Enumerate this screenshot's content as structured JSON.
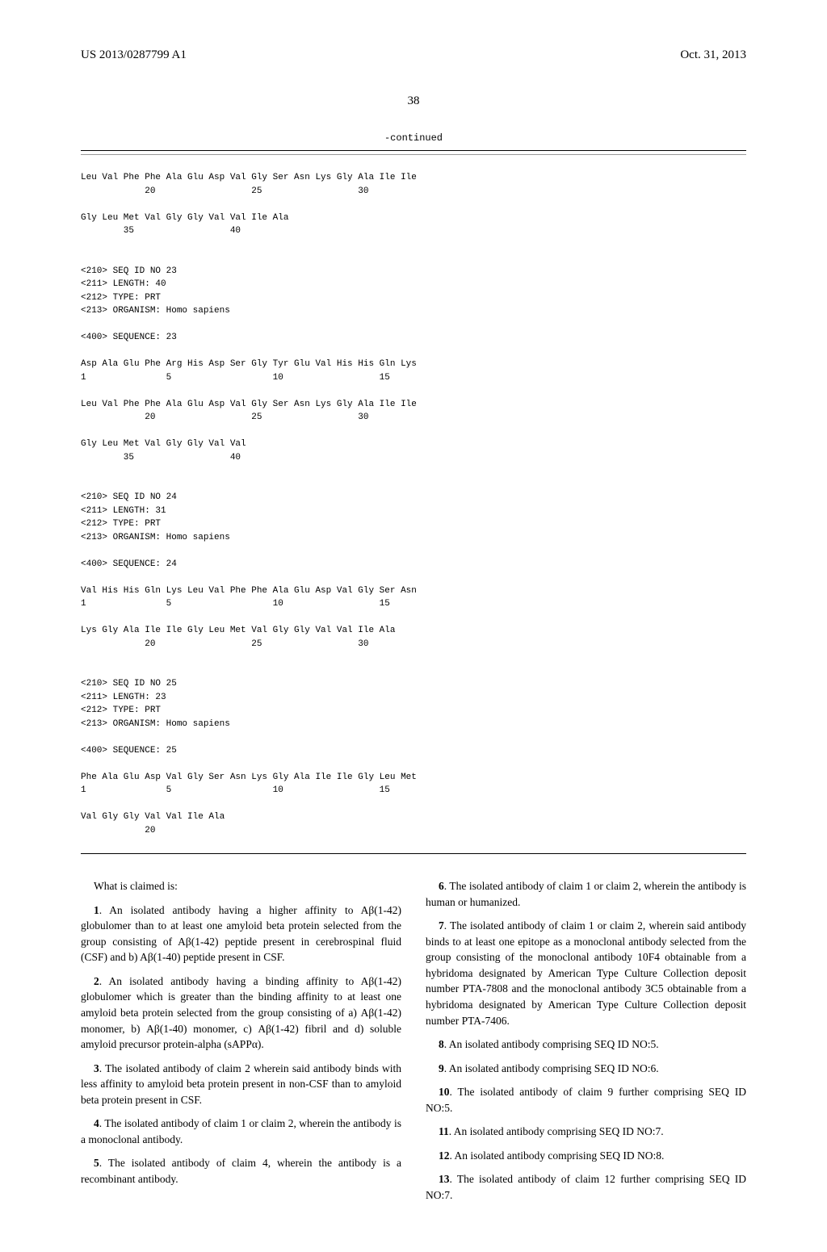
{
  "header": {
    "pub_number": "US 2013/0287799 A1",
    "pub_date": "Oct. 31, 2013"
  },
  "page_number": "38",
  "continued": "-continued",
  "seq_block": "Leu Val Phe Phe Ala Glu Asp Val Gly Ser Asn Lys Gly Ala Ile Ile\n            20                  25                  30\n\nGly Leu Met Val Gly Gly Val Val Ile Ala\n        35                  40\n\n\n<210> SEQ ID NO 23\n<211> LENGTH: 40\n<212> TYPE: PRT\n<213> ORGANISM: Homo sapiens\n\n<400> SEQUENCE: 23\n\nAsp Ala Glu Phe Arg His Asp Ser Gly Tyr Glu Val His His Gln Lys\n1               5                   10                  15\n\nLeu Val Phe Phe Ala Glu Asp Val Gly Ser Asn Lys Gly Ala Ile Ile\n            20                  25                  30\n\nGly Leu Met Val Gly Gly Val Val\n        35                  40\n\n\n<210> SEQ ID NO 24\n<211> LENGTH: 31\n<212> TYPE: PRT\n<213> ORGANISM: Homo sapiens\n\n<400> SEQUENCE: 24\n\nVal His His Gln Lys Leu Val Phe Phe Ala Glu Asp Val Gly Ser Asn\n1               5                   10                  15\n\nLys Gly Ala Ile Ile Gly Leu Met Val Gly Gly Val Val Ile Ala\n            20                  25                  30\n\n\n<210> SEQ ID NO 25\n<211> LENGTH: 23\n<212> TYPE: PRT\n<213> ORGANISM: Homo sapiens\n\n<400> SEQUENCE: 25\n\nPhe Ala Glu Asp Val Gly Ser Asn Lys Gly Ala Ile Ile Gly Leu Met\n1               5                   10                  15\n\nVal Gly Gly Val Val Ile Ala\n            20",
  "claims_intro": "What is claimed is:",
  "claims": {
    "c1": {
      "num": "1",
      "text": ". An isolated antibody having a higher affinity to Aβ(1-42) globulomer than to at least one amyloid beta protein selected from the group consisting of Aβ(1-42) peptide present in cerebrospinal fluid (CSF) and b) Aβ(1-40) peptide present in CSF."
    },
    "c2": {
      "num": "2",
      "text": ". An isolated antibody having a binding affinity to Aβ(1-42) globulomer which is greater than the binding affinity to at least one amyloid beta protein selected from the group consisting of a) Aβ(1-42) monomer, b) Aβ(1-40) monomer, c) Aβ(1-42) fibril and d) soluble amyloid precursor protein-alpha (sAPPα)."
    },
    "c3": {
      "num": "3",
      "text": ". The isolated antibody of claim 2 wherein said antibody binds with less affinity to amyloid beta protein present in non-CSF than to amyloid beta protein present in CSF."
    },
    "c4": {
      "num": "4",
      "text": ". The isolated antibody of claim 1 or claim 2, wherein the antibody is a monoclonal antibody."
    },
    "c5": {
      "num": "5",
      "text": ". The isolated antibody of claim 4, wherein the antibody is a recombinant antibody."
    },
    "c6": {
      "num": "6",
      "text": ". The isolated antibody of claim 1 or claim 2, wherein the antibody is human or humanized."
    },
    "c7": {
      "num": "7",
      "text": ". The isolated antibody of claim 1 or claim 2, wherein said antibody binds to at least one epitope as a monoclonal antibody selected from the group consisting of the monoclonal antibody 10F4 obtainable from a hybridoma designated by American Type Culture Collection deposit number PTA-7808 and the monoclonal antibody 3C5 obtainable from a hybridoma designated by American Type Culture Collection deposit number PTA-7406."
    },
    "c8": {
      "num": "8",
      "text": ". An isolated antibody comprising SEQ ID NO:5."
    },
    "c9": {
      "num": "9",
      "text": ". An isolated antibody comprising SEQ ID NO:6."
    },
    "c10": {
      "num": "10",
      "text": ". The isolated antibody of claim 9 further comprising SEQ ID NO:5."
    },
    "c11": {
      "num": "11",
      "text": ". An isolated antibody comprising SEQ ID NO:7."
    },
    "c12": {
      "num": "12",
      "text": ". An isolated antibody comprising SEQ ID NO:8."
    },
    "c13": {
      "num": "13",
      "text": ". The isolated antibody of claim 12 further comprising SEQ ID NO:7."
    }
  }
}
